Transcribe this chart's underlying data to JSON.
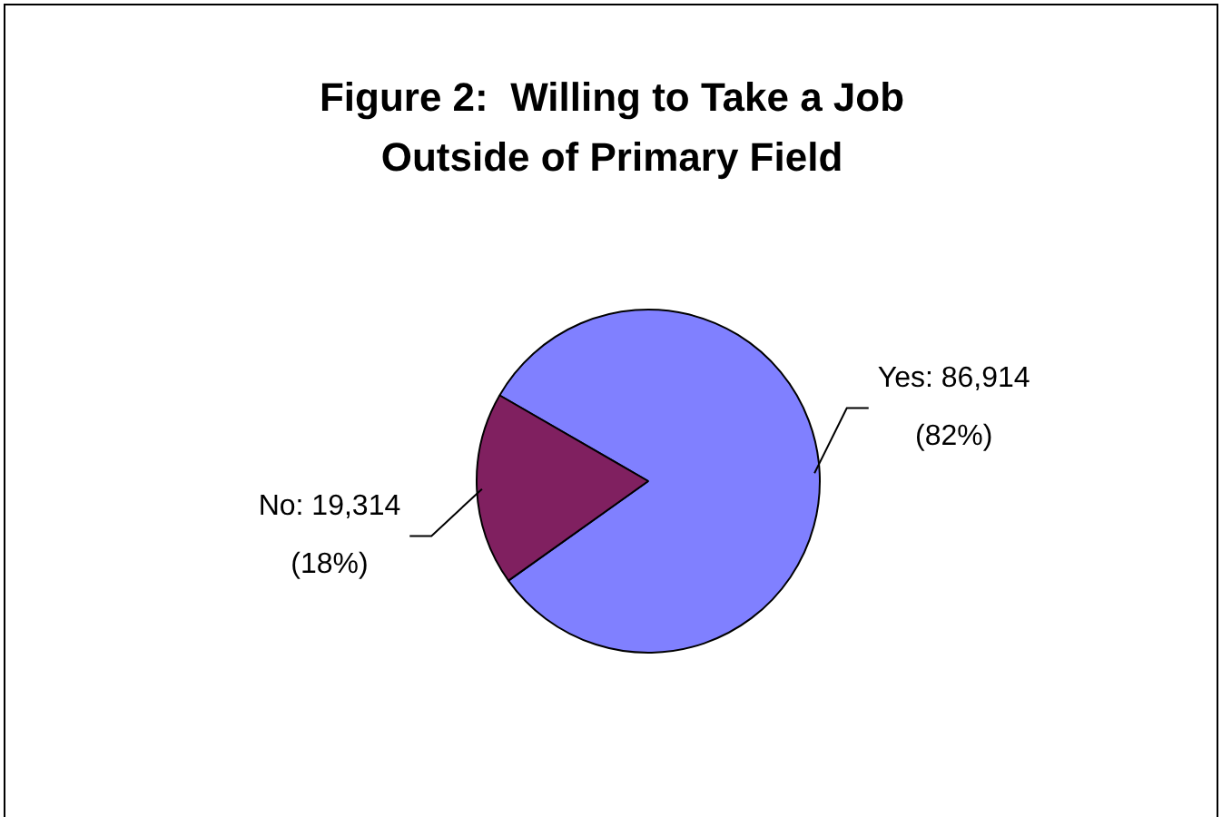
{
  "chart_data": {
    "type": "pie",
    "title": "Figure 2:  Willing to Take a Job\nOutside of Primary Field",
    "categories": [
      "Yes",
      "No"
    ],
    "values": [
      86914,
      19314
    ],
    "colors": [
      "#8080ff",
      "#802060"
    ],
    "value_labels": [
      "86,914\n(82%)",
      "19,314\n(18%)"
    ],
    "legend": false
  }
}
